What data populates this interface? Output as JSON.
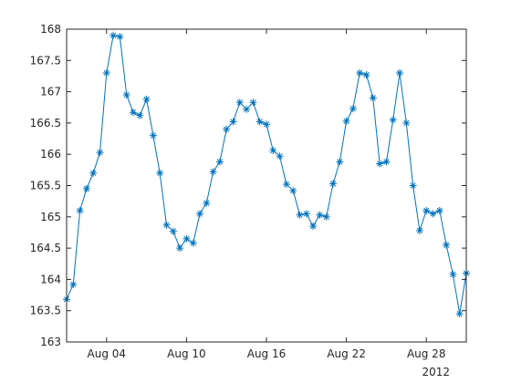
{
  "chart_data": {
    "type": "line",
    "marker": "asterisk",
    "line_color": "#0072BD",
    "title": "",
    "xlabel": "",
    "ylabel": "",
    "x_unit": "days",
    "x": [
      "2012-08-01",
      "2012-08-01T12:00",
      "2012-08-02",
      "2012-08-02T12:00",
      "2012-08-03",
      "2012-08-03T12:00",
      "2012-08-04",
      "2012-08-04T12:00",
      "2012-08-05",
      "2012-08-05T12:00",
      "2012-08-06",
      "2012-08-06T12:00",
      "2012-08-07",
      "2012-08-07T12:00",
      "2012-08-08",
      "2012-08-08T12:00",
      "2012-08-09",
      "2012-08-09T12:00",
      "2012-08-10",
      "2012-08-10T12:00",
      "2012-08-11",
      "2012-08-11T12:00",
      "2012-08-12",
      "2012-08-12T12:00",
      "2012-08-13",
      "2012-08-13T12:00",
      "2012-08-14",
      "2012-08-14T12:00",
      "2012-08-15",
      "2012-08-15T12:00",
      "2012-08-16",
      "2012-08-16T12:00",
      "2012-08-17",
      "2012-08-17T12:00",
      "2012-08-18",
      "2012-08-18T12:00",
      "2012-08-19",
      "2012-08-19T12:00",
      "2012-08-20",
      "2012-08-20T12:00",
      "2012-08-21",
      "2012-08-21T12:00",
      "2012-08-22",
      "2012-08-22T12:00",
      "2012-08-23",
      "2012-08-23T12:00",
      "2012-08-24",
      "2012-08-24T12:00",
      "2012-08-25",
      "2012-08-25T12:00",
      "2012-08-26",
      "2012-08-26T12:00",
      "2012-08-27",
      "2012-08-27T12:00",
      "2012-08-28",
      "2012-08-28T12:00",
      "2012-08-29",
      "2012-08-29T12:00",
      "2012-08-30",
      "2012-08-30T12:00",
      "2012-08-31"
    ],
    "y": [
      163.68,
      163.92,
      165.1,
      165.45,
      165.7,
      166.03,
      167.3,
      167.9,
      167.88,
      166.95,
      166.67,
      166.62,
      166.88,
      166.3,
      165.7,
      164.87,
      164.77,
      164.5,
      164.65,
      164.58,
      165.05,
      165.22,
      165.72,
      165.88,
      166.4,
      166.52,
      166.83,
      166.72,
      166.83,
      166.52,
      166.48,
      166.06,
      165.97,
      165.52,
      165.42,
      165.03,
      165.05,
      164.85,
      165.03,
      165.0,
      165.53,
      165.88,
      166.53,
      166.73,
      167.3,
      167.27,
      166.9,
      165.85,
      165.88,
      166.55,
      167.3,
      166.5,
      165.5,
      164.78,
      165.1,
      165.05,
      165.1,
      164.55,
      164.08,
      163.45,
      164.1
    ],
    "xlim": [
      "2012-08-01",
      "2012-08-31"
    ],
    "ylim": [
      163,
      168
    ],
    "yticks": [
      163,
      163.5,
      164,
      164.5,
      165,
      165.5,
      166,
      166.5,
      167,
      167.5,
      168
    ],
    "ytick_labels": [
      "163",
      "163.5",
      "164",
      "164.5",
      "165",
      "165.5",
      "166",
      "166.5",
      "167",
      "167.5",
      "168"
    ],
    "xticks": [
      "2012-08-04",
      "2012-08-10",
      "2012-08-16",
      "2012-08-22",
      "2012-08-28"
    ],
    "xtick_labels": [
      "Aug 04",
      "Aug 10",
      "Aug 16",
      "Aug 22",
      "Aug 28"
    ],
    "x_secondary_label": "2012",
    "grid": false,
    "legend": false
  }
}
